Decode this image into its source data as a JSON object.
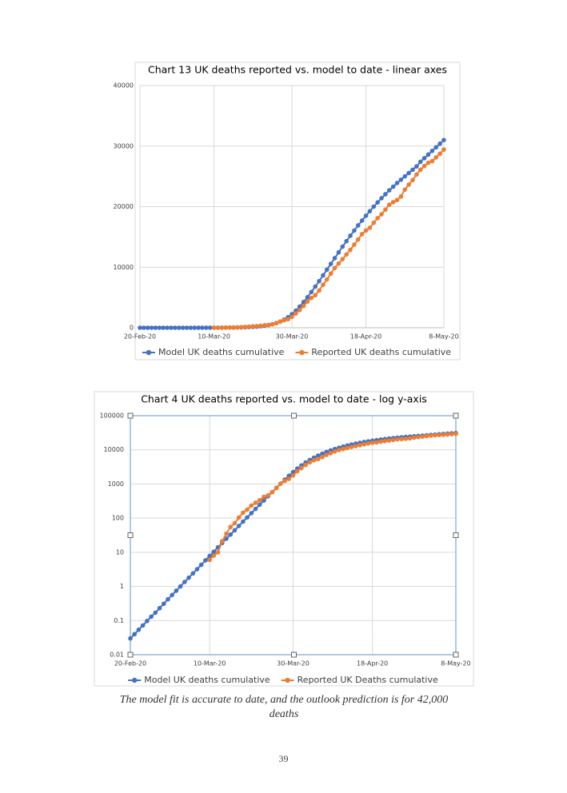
{
  "chart_data": [
    {
      "type": "line",
      "title": "Chart 13 UK deaths reported vs. model to date -  linear axes",
      "x": [
        0,
        1,
        2,
        3,
        4,
        5,
        6,
        7,
        8,
        9,
        10,
        11,
        12,
        13,
        14,
        15,
        16,
        17,
        18,
        19,
        20,
        21,
        22,
        23,
        24,
        25,
        26,
        27,
        28,
        29,
        30,
        31,
        32,
        33,
        34,
        35,
        36,
        37,
        38,
        39,
        40,
        41,
        42,
        43,
        44,
        45,
        46,
        47,
        48,
        49,
        50,
        51,
        52,
        53,
        54,
        55,
        56,
        57,
        58,
        59,
        60,
        61,
        62,
        63,
        64,
        65,
        66,
        67,
        68,
        69,
        70,
        71,
        72,
        73,
        74,
        75,
        76,
        77,
        78
      ],
      "series": [
        {
          "name": "Model UK deaths cumulative",
          "color": "#4472c4",
          "values": [
            0.03,
            0.04,
            0.054,
            0.072,
            0.097,
            0.13,
            0.17,
            0.23,
            0.31,
            0.42,
            0.56,
            0.75,
            1,
            1.35,
            1.8,
            2.4,
            3.2,
            4.3,
            5.8,
            7.8,
            10.4,
            14,
            18.7,
            25,
            33,
            44,
            59,
            79,
            105,
            140,
            186,
            247,
            329,
            437,
            580,
            770,
            1020,
            1340,
            1740,
            2230,
            2820,
            3500,
            4250,
            5050,
            5900,
            6800,
            7700,
            8650,
            9600,
            10550,
            11500,
            12450,
            13400,
            14300,
            15200,
            16050,
            16900,
            17700,
            18500,
            19250,
            20000,
            20700,
            21400,
            22050,
            22700,
            23300,
            23900,
            24450,
            25000,
            25550,
            26100,
            26650,
            27400,
            28000,
            28600,
            29200,
            29800,
            30400,
            31000
          ]
        },
        {
          "name": "Reported UK deaths cumulative",
          "color": "#ed7d31",
          "values": [
            null,
            null,
            null,
            null,
            null,
            null,
            null,
            null,
            null,
            null,
            null,
            null,
            null,
            null,
            null,
            null,
            null,
            null,
            null,
            6,
            8,
            10,
            21,
            35,
            55,
            71,
            104,
            144,
            177,
            233,
            281,
            335,
            422,
            465,
            578,
            759,
            1019,
            1228,
            1408,
            1789,
            2352,
            2921,
            3605,
            4313,
            4934,
            5373,
            6159,
            7097,
            7978,
            8958,
            9875,
            10612,
            11329,
            12107,
            12868,
            13729,
            14576,
            15464,
            16060,
            16509,
            17337,
            18100,
            18738,
            19506,
            20319,
            20732,
            21092,
            21678,
            22814,
            23635,
            24393,
            25302,
            26097,
            26711,
            27241,
            27510,
            28131,
            28734,
            29427
          ]
        }
      ],
      "xlim": [
        0,
        78
      ],
      "xticks": [
        {
          "value": 0,
          "label": "20-Feb-20"
        },
        {
          "value": 19,
          "label": "10-Mar-20"
        },
        {
          "value": 39,
          "label": "30-Mar-20"
        },
        {
          "value": 58,
          "label": "18-Apr-20"
        },
        {
          "value": 78,
          "label": "8-May-20"
        }
      ],
      "ylim": [
        0,
        40000
      ],
      "yticks": [
        0,
        10000,
        20000,
        30000,
        40000
      ],
      "log_y": false,
      "grid": true,
      "legend": "bottom"
    },
    {
      "type": "line",
      "title": "Chart 4 UK deaths reported vs. model to date - log y-axis",
      "x": [
        0,
        1,
        2,
        3,
        4,
        5,
        6,
        7,
        8,
        9,
        10,
        11,
        12,
        13,
        14,
        15,
        16,
        17,
        18,
        19,
        20,
        21,
        22,
        23,
        24,
        25,
        26,
        27,
        28,
        29,
        30,
        31,
        32,
        33,
        34,
        35,
        36,
        37,
        38,
        39,
        40,
        41,
        42,
        43,
        44,
        45,
        46,
        47,
        48,
        49,
        50,
        51,
        52,
        53,
        54,
        55,
        56,
        57,
        58,
        59,
        60,
        61,
        62,
        63,
        64,
        65,
        66,
        67,
        68,
        69,
        70,
        71,
        72,
        73,
        74,
        75,
        76,
        77,
        78
      ],
      "series": [
        {
          "name": "Model UK deaths cumulative",
          "color": "#4472c4",
          "values": [
            0.03,
            0.04,
            0.054,
            0.072,
            0.097,
            0.13,
            0.17,
            0.23,
            0.31,
            0.42,
            0.56,
            0.75,
            1,
            1.35,
            1.8,
            2.4,
            3.2,
            4.3,
            5.8,
            7.8,
            10.4,
            14,
            18.7,
            25,
            33,
            44,
            59,
            79,
            105,
            140,
            186,
            247,
            329,
            437,
            580,
            770,
            1020,
            1340,
            1740,
            2230,
            2820,
            3500,
            4250,
            5050,
            5900,
            6800,
            7700,
            8650,
            9600,
            10550,
            11500,
            12450,
            13400,
            14300,
            15200,
            16050,
            16900,
            17700,
            18500,
            19250,
            20000,
            20700,
            21400,
            22050,
            22700,
            23300,
            23900,
            24450,
            25000,
            25550,
            26100,
            26650,
            27400,
            28000,
            28600,
            29200,
            29800,
            30400,
            31000
          ]
        },
        {
          "name": "Reported UK Deaths cumulative",
          "color": "#ed7d31",
          "values": [
            null,
            null,
            null,
            null,
            null,
            null,
            null,
            null,
            null,
            null,
            null,
            null,
            null,
            null,
            null,
            null,
            null,
            null,
            null,
            6,
            8,
            10,
            21,
            35,
            55,
            71,
            104,
            144,
            177,
            233,
            281,
            335,
            422,
            465,
            578,
            759,
            1019,
            1228,
            1408,
            1789,
            2352,
            2921,
            3605,
            4313,
            4934,
            5373,
            6159,
            7097,
            7978,
            8958,
            9875,
            10612,
            11329,
            12107,
            12868,
            13729,
            14576,
            15464,
            16060,
            16509,
            17337,
            18100,
            18738,
            19506,
            20319,
            20732,
            21092,
            21678,
            22814,
            23635,
            24393,
            25302,
            26097,
            26711,
            27241,
            27510,
            28131,
            28734,
            29427
          ]
        }
      ],
      "xlim": [
        0,
        78
      ],
      "xticks": [
        {
          "value": 0,
          "label": "20-Feb-20"
        },
        {
          "value": 19,
          "label": "10-Mar-20"
        },
        {
          "value": 39,
          "label": "30-Mar-20"
        },
        {
          "value": 58,
          "label": "18-Apr-20"
        },
        {
          "value": 78,
          "label": "8-May-20"
        }
      ],
      "ylim": [
        0.01,
        100000
      ],
      "yticks": [
        0.01,
        0.1,
        1,
        10,
        100,
        1000,
        10000,
        100000
      ],
      "log_y": true,
      "grid": true,
      "legend": "bottom"
    }
  ],
  "caption": "The model fit is accurate to date, and the outlook prediction is for 42,000 deaths",
  "page_number": "39"
}
